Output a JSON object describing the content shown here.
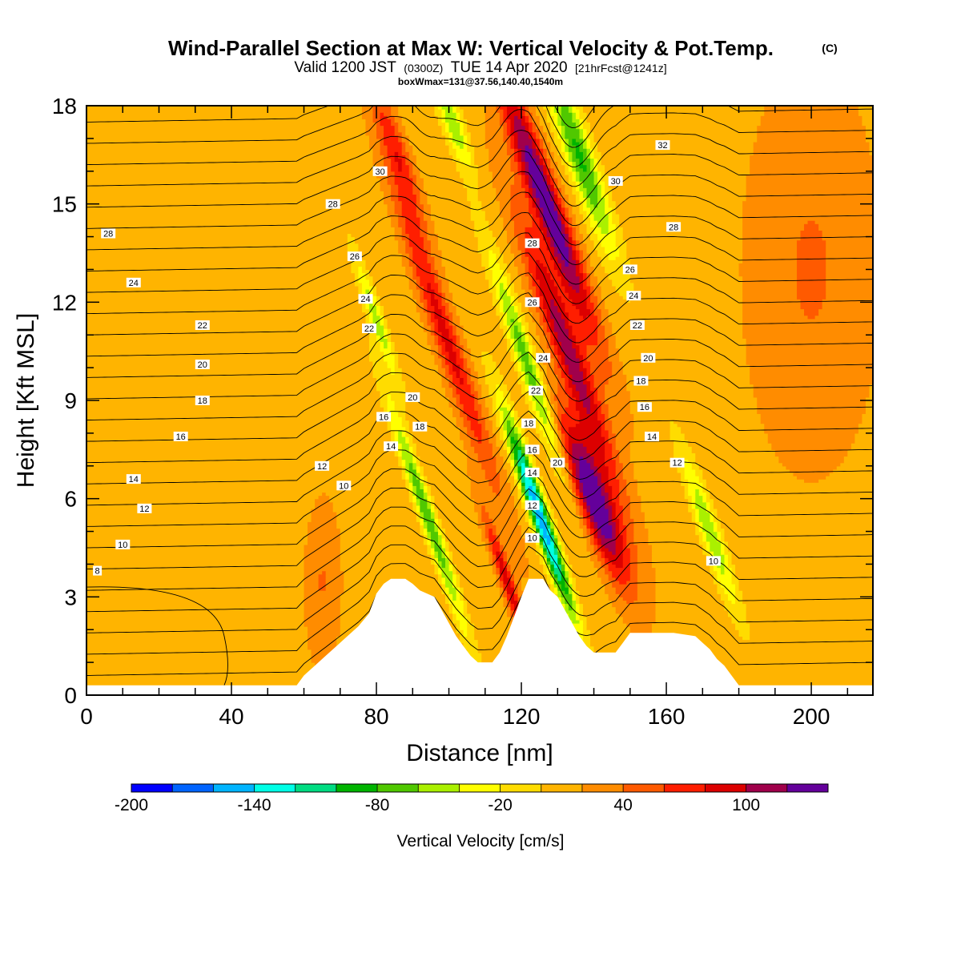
{
  "title": {
    "main": "Wind-Parallel Section at Max W: Vertical Velocity & Pot.Temp.",
    "copyright": "(C)",
    "valid_prefix": "Valid 1200 JST",
    "valid_utc": "(0300Z)",
    "valid_date": "TUE 14 Apr 2020",
    "forecast": "[21hrFcst@1241z]",
    "boxinfo": "boxWmax=131@37.56,140.40,1540m"
  },
  "chart_data": {
    "type": "heatmap",
    "xlabel": "Distance [nm]",
    "ylabel": "Height [Kft MSL]",
    "xlim": [
      0,
      217
    ],
    "ylim": [
      0,
      18
    ],
    "x_ticks": [
      0,
      40,
      80,
      120,
      160,
      200
    ],
    "y_ticks": [
      0,
      3,
      6,
      9,
      12,
      15,
      18
    ],
    "grid": false,
    "colorbar": {
      "title": "Vertical Velocity [cm/s]",
      "min": -200,
      "max": 140,
      "step": 20,
      "labels": [
        -200,
        -140,
        -80,
        -20,
        40,
        100
      ],
      "colors": [
        "#0000ff",
        "#0064ff",
        "#00b4ff",
        "#00ffe6",
        "#00dc82",
        "#00b400",
        "#50c800",
        "#aaf000",
        "#ffff00",
        "#ffdc00",
        "#ffb400",
        "#ff8c00",
        "#ff5a00",
        "#ff1e00",
        "#dc0000",
        "#a0004b",
        "#64009b"
      ]
    },
    "terrain": [
      [
        0,
        0.3
      ],
      [
        58,
        0.3
      ],
      [
        60,
        0.6
      ],
      [
        63,
        0.9
      ],
      [
        66,
        1.2
      ],
      [
        69,
        1.5
      ],
      [
        72,
        1.8
      ],
      [
        75,
        2.1
      ],
      [
        78,
        2.5
      ],
      [
        80,
        3.1
      ],
      [
        82,
        3.4
      ],
      [
        84,
        3.55
      ],
      [
        88,
        3.55
      ],
      [
        90,
        3.4
      ],
      [
        92,
        3.2
      ],
      [
        96,
        3.0
      ],
      [
        98,
        2.6
      ],
      [
        100,
        2.2
      ],
      [
        102,
        1.8
      ],
      [
        104,
        1.5
      ],
      [
        106,
        1.2
      ],
      [
        108,
        1.0
      ],
      [
        112,
        1.0
      ],
      [
        114,
        1.3
      ],
      [
        116,
        1.8
      ],
      [
        118,
        2.4
      ],
      [
        120,
        3.0
      ],
      [
        122,
        3.55
      ],
      [
        126,
        3.55
      ],
      [
        128,
        3.2
      ],
      [
        130,
        3.0
      ],
      [
        132,
        2.6
      ],
      [
        134,
        2.2
      ],
      [
        136,
        1.8
      ],
      [
        138,
        1.5
      ],
      [
        140,
        1.3
      ],
      [
        146,
        1.3
      ],
      [
        148,
        1.6
      ],
      [
        150,
        1.9
      ],
      [
        162,
        1.9
      ],
      [
        168,
        1.8
      ],
      [
        170,
        1.6
      ],
      [
        172,
        1.4
      ],
      [
        174,
        1.1
      ],
      [
        176,
        0.9
      ],
      [
        178,
        0.6
      ],
      [
        180,
        0.3
      ],
      [
        217,
        0.3
      ]
    ],
    "wfeatures": [
      {
        "x": 127,
        "y": 15,
        "sx": 3.0,
        "sy": 3.0,
        "slope": -3.2,
        "amp": 130
      },
      {
        "x": 140,
        "y": 6.0,
        "sx": 3.5,
        "sy": 1.8,
        "slope": -3.2,
        "amp": 135
      },
      {
        "x": 133,
        "y": 10.5,
        "sx": 3.0,
        "sy": 3.0,
        "slope": -3.2,
        "amp": 100
      },
      {
        "x": 99,
        "y": 11,
        "sx": 2.5,
        "sy": 3.5,
        "slope": -3.0,
        "amp": 75
      },
      {
        "x": 86,
        "y": 16.5,
        "sx": 2.2,
        "sy": 1.6,
        "slope": -3.0,
        "amp": 60
      },
      {
        "x": 116,
        "y": 3.5,
        "sx": 1.4,
        "sy": 1.5,
        "slope": -3.0,
        "amp": 80
      },
      {
        "x": 125,
        "y": 5.5,
        "sx": 1.8,
        "sy": 2.2,
        "slope": -3.0,
        "amp": -170
      },
      {
        "x": 122,
        "y": 10,
        "sx": 2.0,
        "sy": 2.6,
        "slope": -3.0,
        "amp": -85
      },
      {
        "x": 136,
        "y": 16.5,
        "sx": 2.8,
        "sy": 2.2,
        "slope": -3.0,
        "amp": -95
      },
      {
        "x": 94,
        "y": 5.5,
        "sx": 1.6,
        "sy": 2.6,
        "slope": -3.0,
        "amp": -90
      },
      {
        "x": 80,
        "y": 11.5,
        "sx": 1.4,
        "sy": 1.4,
        "slope": -3.0,
        "amp": -65
      },
      {
        "x": 172,
        "y": 5.0,
        "sx": 2.0,
        "sy": 1.8,
        "slope": -3.0,
        "amp": -70
      },
      {
        "x": 101,
        "y": 17.5,
        "sx": 2.0,
        "sy": 1.0,
        "slope": -3.0,
        "amp": -70
      },
      {
        "x": 65,
        "y": 3.5,
        "sx": 3.5,
        "sy": 1.8,
        "slope": 0,
        "amp": 30
      },
      {
        "x": 45,
        "y": 11,
        "sx": 12,
        "sy": 6.0,
        "slope": 0,
        "amp": -12
      },
      {
        "x": 200,
        "y": 13,
        "sx": 12,
        "sy": 4.0,
        "slope": 0,
        "amp": 30
      }
    ],
    "contour_labels": [
      {
        "text": "30",
        "x": 81,
        "y": 16.0
      },
      {
        "text": "28",
        "x": 68,
        "y": 15.0
      },
      {
        "text": "28",
        "x": 6,
        "y": 14.1
      },
      {
        "text": "26",
        "x": 74,
        "y": 13.4
      },
      {
        "text": "24",
        "x": 13,
        "y": 12.6
      },
      {
        "text": "24",
        "x": 77,
        "y": 12.1
      },
      {
        "text": "22",
        "x": 32,
        "y": 11.3
      },
      {
        "text": "22",
        "x": 78,
        "y": 11.2
      },
      {
        "text": "20",
        "x": 32,
        "y": 10.1
      },
      {
        "text": "20",
        "x": 90,
        "y": 9.1
      },
      {
        "text": "18",
        "x": 32,
        "y": 9.0
      },
      {
        "text": "18",
        "x": 92,
        "y": 8.2
      },
      {
        "text": "16",
        "x": 26,
        "y": 7.9
      },
      {
        "text": "16",
        "x": 82,
        "y": 8.5
      },
      {
        "text": "14",
        "x": 84,
        "y": 7.6
      },
      {
        "text": "14",
        "x": 13,
        "y": 6.6
      },
      {
        "text": "12",
        "x": 65,
        "y": 7.0
      },
      {
        "text": "12",
        "x": 16,
        "y": 5.7
      },
      {
        "text": "10",
        "x": 71,
        "y": 6.4
      },
      {
        "text": "10",
        "x": 10,
        "y": 4.6
      },
      {
        "text": "8",
        "x": 3,
        "y": 3.8
      },
      {
        "text": "28",
        "x": 123,
        "y": 13.8
      },
      {
        "text": "26",
        "x": 123,
        "y": 12.0
      },
      {
        "text": "24",
        "x": 126,
        "y": 10.3
      },
      {
        "text": "22",
        "x": 124,
        "y": 9.3
      },
      {
        "text": "18",
        "x": 122,
        "y": 8.3
      },
      {
        "text": "16",
        "x": 123,
        "y": 7.5
      },
      {
        "text": "14",
        "x": 123,
        "y": 6.8
      },
      {
        "text": "20",
        "x": 130,
        "y": 7.1
      },
      {
        "text": "12",
        "x": 123,
        "y": 5.8
      },
      {
        "text": "10",
        "x": 123,
        "y": 4.8
      },
      {
        "text": "32",
        "x": 159,
        "y": 16.8
      },
      {
        "text": "30",
        "x": 146,
        "y": 15.7
      },
      {
        "text": "28",
        "x": 162,
        "y": 14.3
      },
      {
        "text": "26",
        "x": 150,
        "y": 13.0
      },
      {
        "text": "24",
        "x": 151,
        "y": 12.2
      },
      {
        "text": "22",
        "x": 152,
        "y": 11.3
      },
      {
        "text": "20",
        "x": 155,
        "y": 10.3
      },
      {
        "text": "18",
        "x": 153,
        "y": 9.6
      },
      {
        "text": "16",
        "x": 154,
        "y": 8.8
      },
      {
        "text": "14",
        "x": 156,
        "y": 7.9
      },
      {
        "text": "12",
        "x": 163,
        "y": 7.1
      },
      {
        "text": "10",
        "x": 173,
        "y": 4.1
      }
    ]
  }
}
